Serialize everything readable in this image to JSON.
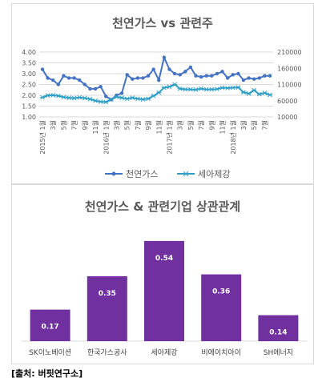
{
  "charts": {
    "top": {
      "title": "천연가스 vs 관련주"
    },
    "bottom": {
      "title": "천연가스 & 관련기업 상관관계"
    }
  },
  "source": "[출처: 버핏연구소]",
  "chart_data": [
    {
      "type": "line",
      "title": "천연가스 vs 관련주",
      "x_period": "2015-01 to 2018-08 (monthly)",
      "x_tick_labels": [
        "2015년 1월",
        "3월",
        "5월",
        "7월",
        "9월",
        "11월",
        "2016년 1월",
        "3월",
        "5월",
        "7월",
        "9월",
        "11월",
        "2017년 1월",
        "3월",
        "5월",
        "7월",
        "9월",
        "11월",
        "2018년 1월",
        "3월",
        "5월",
        "7월"
      ],
      "ylim_left": [
        1.0,
        4.0
      ],
      "yticks_left": [
        "1.00",
        "1.50",
        "2.00",
        "2.50",
        "3.00",
        "3.50",
        "4.00"
      ],
      "ylim_right": [
        10000,
        210000
      ],
      "yticks_right": [
        "10000",
        "60000",
        "110000",
        "160000",
        "210000"
      ],
      "grid": true,
      "legend_position": "bottom",
      "colors": {
        "천연가스": "#4472c4",
        "세아제강": "#2e9fc6"
      },
      "series": [
        {
          "name": "천연가스",
          "axis": "left",
          "marker": "circle",
          "values": [
            3.2,
            2.8,
            2.7,
            2.5,
            2.9,
            2.8,
            2.8,
            2.7,
            2.5,
            2.3,
            2.3,
            2.4,
            1.95,
            1.8,
            2.0,
            2.1,
            2.95,
            2.75,
            2.8,
            2.8,
            2.9,
            3.2,
            2.7,
            3.75,
            3.2,
            3.0,
            2.95,
            3.1,
            3.3,
            2.9,
            2.85,
            2.9,
            2.9,
            3.0,
            3.1,
            2.8,
            2.95,
            3.0,
            2.7,
            2.8,
            2.75,
            2.8,
            2.9,
            2.9
          ]
        },
        {
          "name": "세아제강",
          "axis": "right",
          "marker": "star",
          "values": [
            70000,
            76000,
            77000,
            75000,
            71000,
            69000,
            68000,
            70000,
            68000,
            65000,
            60000,
            57000,
            56000,
            64000,
            72000,
            69000,
            66000,
            69000,
            66000,
            64000,
            66000,
            75000,
            85000,
            100000,
            103000,
            110000,
            97000,
            95000,
            95000,
            94000,
            97000,
            95000,
            95000,
            96000,
            100000,
            99000,
            100000,
            101000,
            86000,
            82000,
            92000,
            80000,
            84000,
            78000
          ]
        }
      ]
    },
    {
      "type": "bar",
      "title": "천연가스 & 관련기업 상관관계",
      "categories": [
        "SK이노베이션",
        "한국가스공사",
        "세아제강",
        "비에이치아이",
        "SH에너지"
      ],
      "values": [
        0.17,
        0.35,
        0.54,
        0.36,
        0.14
      ],
      "value_labels": [
        "0.17",
        "0.35",
        "0.54",
        "0.36",
        "0.14"
      ],
      "ylim": [
        0,
        0.6
      ],
      "grid": false,
      "color": "#7030a0"
    }
  ]
}
